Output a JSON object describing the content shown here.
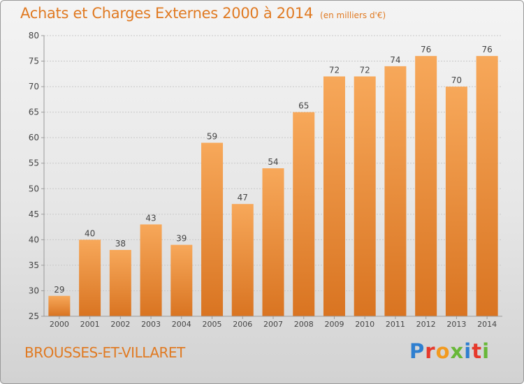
{
  "title": "Achats et Charges Externes 2000 à 2014",
  "unit": "(en milliers d'€)",
  "place": "BROUSSES-ET-VILLARET",
  "logo": {
    "text": "Proxiti"
  },
  "colors": {
    "title": "#e07a22",
    "bar_top": "#f7a85a",
    "bar_bottom": "#d97421",
    "axis": "#9a9a9a",
    "grid": "#c8c8c8"
  },
  "chart_data": {
    "type": "bar",
    "categories": [
      "2000",
      "2001",
      "2002",
      "2003",
      "2004",
      "2005",
      "2006",
      "2007",
      "2008",
      "2009",
      "2010",
      "2011",
      "2012",
      "2013",
      "2014"
    ],
    "values": [
      29,
      40,
      38,
      43,
      39,
      59,
      47,
      54,
      65,
      72,
      72,
      74,
      76,
      70,
      76
    ],
    "ylim": [
      25,
      80
    ],
    "yticks": [
      25,
      30,
      35,
      40,
      45,
      50,
      55,
      60,
      65,
      70,
      75,
      80
    ],
    "grid": true,
    "legend": "none"
  }
}
